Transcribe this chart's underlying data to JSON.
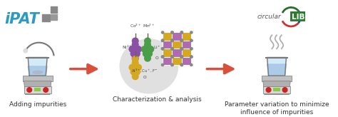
{
  "bg_color": "#ffffff",
  "ipat_text": "iPAT",
  "ipat_color": "#2b9bbf",
  "step1_label": "Adding impurities",
  "step2_label": "Characterization & analysis",
  "step3_label": "Parameter variation to minimize\ninfluence of impurities",
  "arrow_color": "#d94f3b",
  "label_fontsize": 6.5,
  "grape_purple": "#8b4fa8",
  "grape_green": "#4a9e4a",
  "grape_yellow": "#d4a820",
  "grid_yellow": "#d4a820",
  "grid_purple": "#b06ab0",
  "grid_dot": "#888888",
  "icon_outline": "#777777",
  "icon_plate_light": "#c0c0c0",
  "icon_plate_dark": "#999999",
  "icon_beaker_fill": "#cce8f8",
  "icon_liquid": "#a8c8e8",
  "icon_red_btn": "#cc2222",
  "icon_green_display": "#88cc44",
  "icon_red_btn2": "#cc3333",
  "steam_color": "#aaaaaa",
  "ellipse_color": "#e0e0e0",
  "ion_color": "#444444",
  "circular_color": "#555555",
  "circular_lib_bg": "#2e7d32",
  "arc_red": "#d0312d",
  "arc_green": "#2a6e28",
  "arc_blue": "#1a4a9e"
}
